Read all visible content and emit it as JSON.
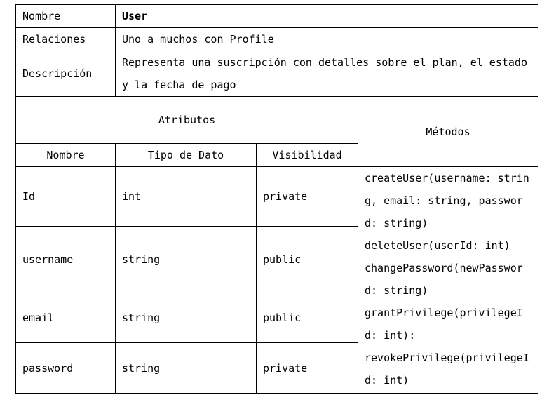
{
  "header": {
    "name_label": "Nombre",
    "name_value": "User",
    "relations_label": "Relaciones",
    "relations_value": "Uno a muchos con Profile",
    "description_label": "Descripción",
    "description_value": "Representa una suscripción con detalles sobre el plan, el estado y la fecha de pago"
  },
  "attributes": {
    "title": "Atributos",
    "columns": {
      "name": "Nombre",
      "type": "Tipo de Dato",
      "visibility": "Visibilidad"
    },
    "rows": [
      {
        "name": "Id",
        "type": "int",
        "visibility": "private"
      },
      {
        "name": "username",
        "type": "string",
        "visibility": "public"
      },
      {
        "name": "email",
        "type": "string",
        "visibility": "public"
      },
      {
        "name": "password",
        "type": "string",
        "visibility": "private"
      }
    ]
  },
  "methods": {
    "title": "Métodos",
    "items": [
      "createUser(username: string, email: string, password: string)",
      "deleteUser(userId: int)",
      "changePassword(newPassword: string)",
      "grantPrivilege(privilegeId: int):",
      "revokePrivilege(privilegeId: int)"
    ]
  }
}
